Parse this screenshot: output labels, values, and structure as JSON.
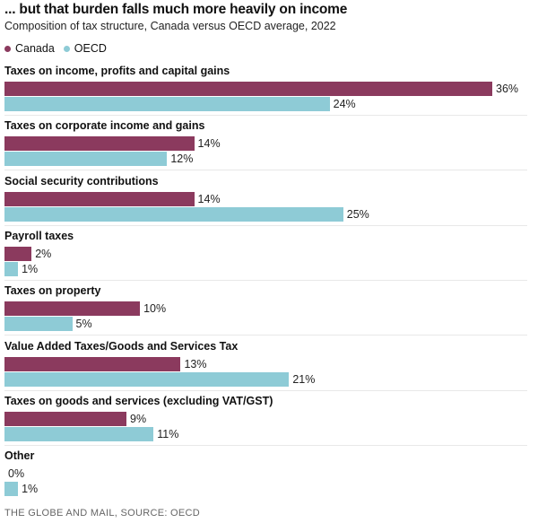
{
  "chart_data": {
    "type": "bar",
    "orientation": "horizontal",
    "title": "... but that burden falls much more heavily on income",
    "subtitle": "Composition of tax structure, Canada versus OECD average, 2022",
    "categories": [
      "Taxes on income, profits and capital gains",
      "Taxes on corporate income and gains",
      "Social security contributions",
      "Payroll taxes",
      "Taxes on property",
      "Value Added Taxes/Goods and Services Tax",
      "Taxes on goods and services (excluding VAT/GST)",
      "Other"
    ],
    "series": [
      {
        "name": "Canada",
        "color": "#8b3a5e",
        "values": [
          36,
          14,
          14,
          2,
          10,
          13,
          9,
          0
        ],
        "labels": [
          "36%",
          "14%",
          "14%",
          "2%",
          "10%",
          "13%",
          "9%",
          "0%"
        ]
      },
      {
        "name": "OECD",
        "color": "#8ecbd6",
        "values": [
          24,
          12,
          25,
          1,
          5,
          21,
          11,
          1
        ],
        "labels": [
          "24%",
          "12%",
          "25%",
          "1%",
          "5%",
          "21%",
          "11%",
          "1%"
        ]
      }
    ],
    "xlim": [
      0,
      36
    ],
    "grid": false,
    "legend": "top-left",
    "source": "THE GLOBE AND MAIL, SOURCE: OECD"
  }
}
